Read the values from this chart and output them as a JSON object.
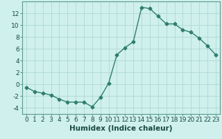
{
  "x": [
    0,
    1,
    2,
    3,
    4,
    5,
    6,
    7,
    8,
    9,
    10,
    11,
    12,
    13,
    14,
    15,
    16,
    17,
    18,
    19,
    20,
    21,
    22,
    23
  ],
  "y": [
    -0.5,
    -1.2,
    -1.5,
    -1.8,
    -2.5,
    -3.0,
    -3.0,
    -3.0,
    -3.8,
    -2.2,
    0.2,
    5.0,
    6.2,
    7.2,
    13.0,
    12.8,
    11.5,
    10.2,
    10.2,
    9.2,
    8.8,
    7.8,
    6.5,
    5.0
  ],
  "line_color": "#2e7d6e",
  "marker": "D",
  "markersize": 2.5,
  "linewidth": 1.0,
  "xlabel": "Humidex (Indice chaleur)",
  "xlim": [
    -0.5,
    23.5
  ],
  "ylim": [
    -5,
    14
  ],
  "yticks": [
    -4,
    -2,
    0,
    2,
    4,
    6,
    8,
    10,
    12
  ],
  "xticks": [
    0,
    1,
    2,
    3,
    4,
    5,
    6,
    7,
    8,
    9,
    10,
    11,
    12,
    13,
    14,
    15,
    16,
    17,
    18,
    19,
    20,
    21,
    22,
    23
  ],
  "bg_color": "#cff0ec",
  "grid_color": "#b0d8d4",
  "tick_label_fontsize": 6.5,
  "xlabel_fontsize": 7.5,
  "spine_color": "#5a9a90",
  "label_color": "#1a4a42"
}
